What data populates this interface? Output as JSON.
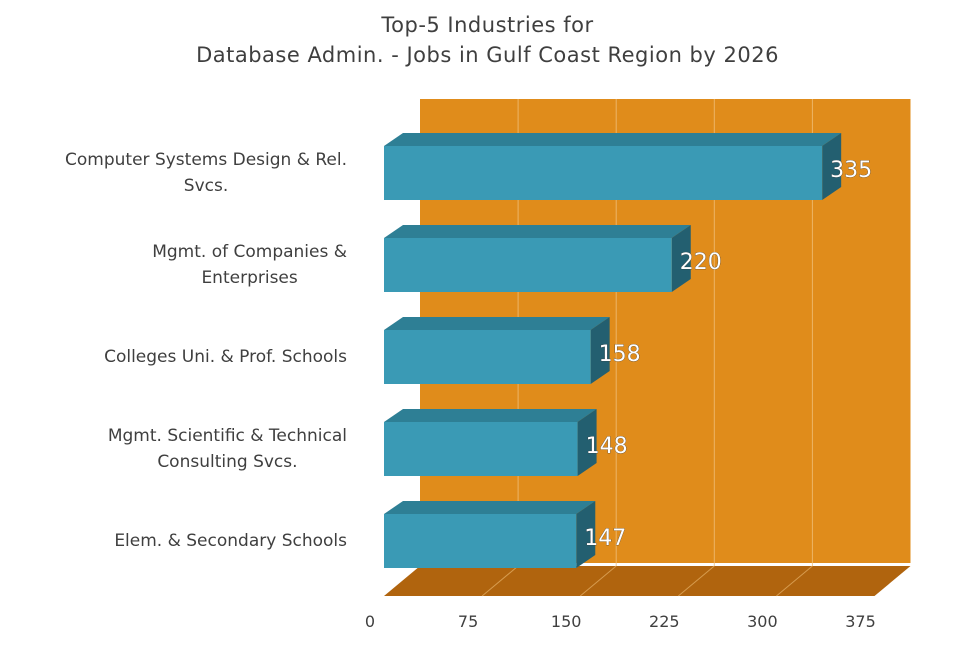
{
  "chart_data": {
    "type": "bar",
    "orientation": "horizontal",
    "title_lines": [
      "Top-5 Industries for",
      "Database Admin. - Jobs in Gulf Coast Region by 2026"
    ],
    "categories": [
      [
        "Computer Systems Design & Rel.",
        "Svcs."
      ],
      [
        "Mgmt. of Companies &",
        "Enterprises"
      ],
      [
        "Colleges Uni. & Prof. Schools"
      ],
      [
        "Mgmt. Scientific & Technical",
        "Consulting Svcs."
      ],
      [
        "Elem. & Secondary Schools"
      ]
    ],
    "values": [
      335,
      220,
      158,
      148,
      147
    ],
    "data_labels": [
      "335",
      "220",
      "158",
      "148",
      "147"
    ],
    "xlim": [
      0,
      375
    ],
    "ticks": [
      0,
      75,
      150,
      225,
      300,
      375
    ],
    "tick_labels": [
      "0",
      "75",
      "150",
      "225",
      "300",
      "375"
    ],
    "grid": true,
    "legend": "none",
    "colors": {
      "bar_front": "#3a9ab5",
      "bar_top": "#2e7f95",
      "bar_side": "#235f70",
      "plot_back": "#e08c1b",
      "plot_floor": "#b0640e",
      "gridline": "#f0c07a"
    }
  }
}
